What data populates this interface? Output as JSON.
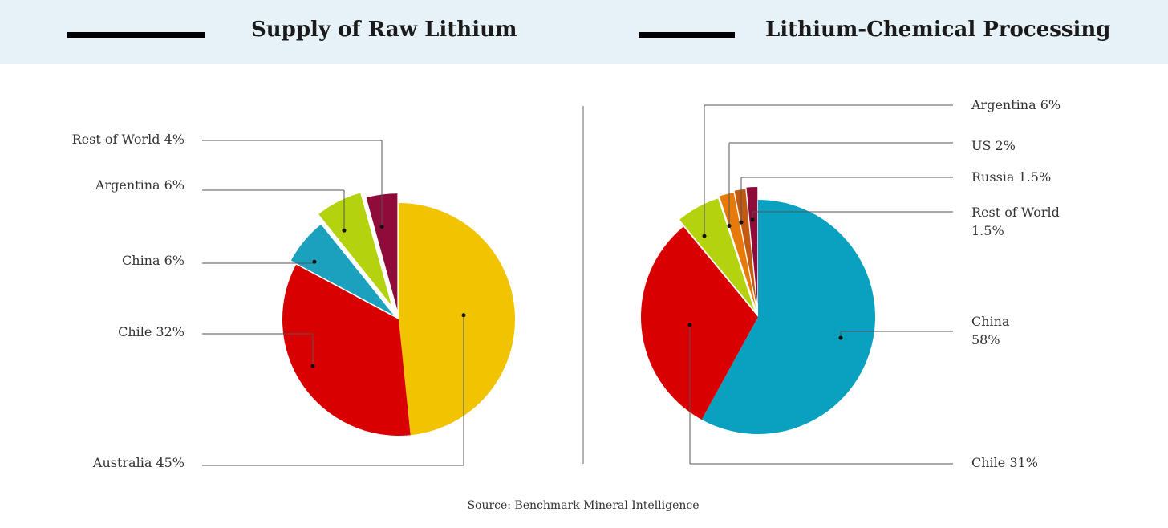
{
  "chart_data": [
    {
      "type": "pie",
      "title": "Supply of Raw Lithium",
      "slices": [
        {
          "label": "Australia 45%",
          "value": 45,
          "color": "#f2c300"
        },
        {
          "label": "Chile 32%",
          "value": 32,
          "color": "#d80000"
        },
        {
          "label": "China 6%",
          "value": 6,
          "color": "#1ba0be"
        },
        {
          "label": "Argentina 6%",
          "value": 6,
          "color": "#b5d20f"
        },
        {
          "label": "Rest of World 4%",
          "value": 4,
          "color": "#8e0b3a"
        }
      ]
    },
    {
      "type": "pie",
      "title": "Lithium-Chemical Processing",
      "slices": [
        {
          "label": "China 58%",
          "value": 58,
          "color": "#0aa0bf"
        },
        {
          "label": "Chile 31%",
          "value": 31,
          "color": "#d80000"
        },
        {
          "label": "Argentina 6%",
          "value": 6,
          "color": "#b5d20f"
        },
        {
          "label": "US 2%",
          "value": 2,
          "color": "#e77a0a"
        },
        {
          "label": "Russia 1.5%",
          "value": 1.5,
          "color": "#c25a12"
        },
        {
          "label": "Rest of World 1.5%",
          "value": 1.5,
          "color": "#8e0b3a"
        }
      ]
    }
  ],
  "source": "Source: Benchmark Mineral Intelligence"
}
